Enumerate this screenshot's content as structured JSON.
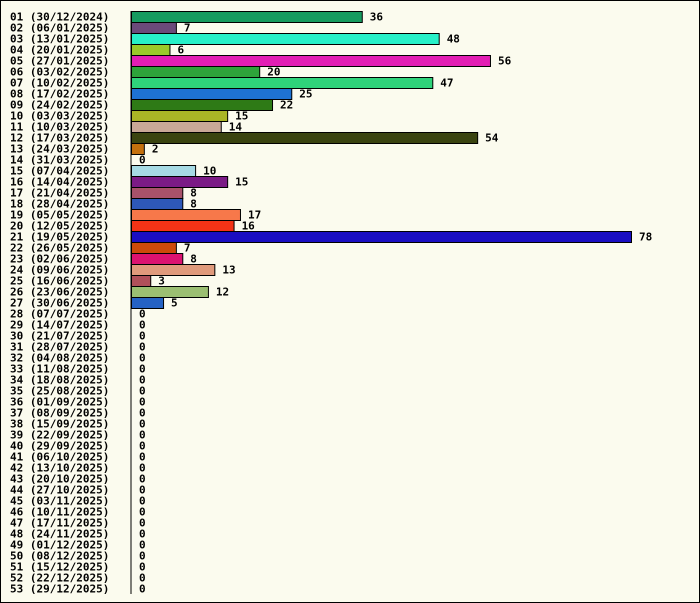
{
  "chart_data": {
    "type": "bar",
    "orientation": "horizontal",
    "title": "",
    "xlabel": "",
    "ylabel": "",
    "xlim": [
      0,
      78
    ],
    "grid": false,
    "legend": "none",
    "background": "#fbfbee",
    "categories": [
      "01 (30/12/2024)",
      "02 (06/01/2025)",
      "03 (13/01/2025)",
      "04 (20/01/2025)",
      "05 (27/01/2025)",
      "06 (03/02/2025)",
      "07 (10/02/2025)",
      "08 (17/02/2025)",
      "09 (24/02/2025)",
      "10 (03/03/2025)",
      "11 (10/03/2025)",
      "12 (17/03/2025)",
      "13 (24/03/2025)",
      "14 (31/03/2025)",
      "15 (07/04/2025)",
      "16 (14/04/2025)",
      "17 (21/04/2025)",
      "18 (28/04/2025)",
      "19 (05/05/2025)",
      "20 (12/05/2025)",
      "21 (19/05/2025)",
      "22 (26/05/2025)",
      "23 (02/06/2025)",
      "24 (09/06/2025)",
      "25 (16/06/2025)",
      "26 (23/06/2025)",
      "27 (30/06/2025)",
      "28 (07/07/2025)",
      "29 (14/07/2025)",
      "30 (21/07/2025)",
      "31 (28/07/2025)",
      "32 (04/08/2025)",
      "33 (11/08/2025)",
      "34 (18/08/2025)",
      "35 (25/08/2025)",
      "36 (01/09/2025)",
      "37 (08/09/2025)",
      "38 (15/09/2025)",
      "39 (22/09/2025)",
      "40 (29/09/2025)",
      "41 (06/10/2025)",
      "42 (13/10/2025)",
      "43 (20/10/2025)",
      "44 (27/10/2025)",
      "45 (03/11/2025)",
      "46 (10/11/2025)",
      "47 (17/11/2025)",
      "48 (24/11/2025)",
      "49 (01/12/2025)",
      "50 (08/12/2025)",
      "51 (15/12/2025)",
      "52 (22/12/2025)",
      "53 (29/12/2025)"
    ],
    "values": [
      36,
      7,
      48,
      6,
      56,
      20,
      47,
      25,
      22,
      15,
      14,
      54,
      2,
      0,
      10,
      15,
      8,
      8,
      17,
      16,
      78,
      7,
      8,
      13,
      3,
      12,
      5,
      0,
      0,
      0,
      0,
      0,
      0,
      0,
      0,
      0,
      0,
      0,
      0,
      0,
      0,
      0,
      0,
      0,
      0,
      0,
      0,
      0,
      0,
      0,
      0,
      0,
      0
    ],
    "colors": [
      "#169b5f",
      "#6b4a7a",
      "#27f0c8",
      "#9ac92a",
      "#e21eb4",
      "#2ea33a",
      "#2fd37a",
      "#1e72d2",
      "#2e7a16",
      "#aab526",
      "#c9a898",
      "#3a4410",
      "#c4700e",
      "#ffffff",
      "#a6dae4",
      "#7b1b86",
      "#a8526a",
      "#2e58b8",
      "#f7784a",
      "#f43316",
      "#1a0ec2",
      "#cc4a0a",
      "#dc1270",
      "#e09a7c",
      "#b0505a",
      "#9bbf72",
      "#2562c4",
      "#ffffff",
      "#ffffff",
      "#ffffff",
      "#ffffff",
      "#ffffff",
      "#ffffff",
      "#ffffff",
      "#ffffff",
      "#ffffff",
      "#ffffff",
      "#ffffff",
      "#ffffff",
      "#ffffff",
      "#ffffff",
      "#ffffff",
      "#ffffff",
      "#ffffff",
      "#ffffff",
      "#ffffff",
      "#ffffff",
      "#ffffff",
      "#ffffff",
      "#ffffff",
      "#ffffff",
      "#ffffff",
      "#ffffff"
    ]
  }
}
